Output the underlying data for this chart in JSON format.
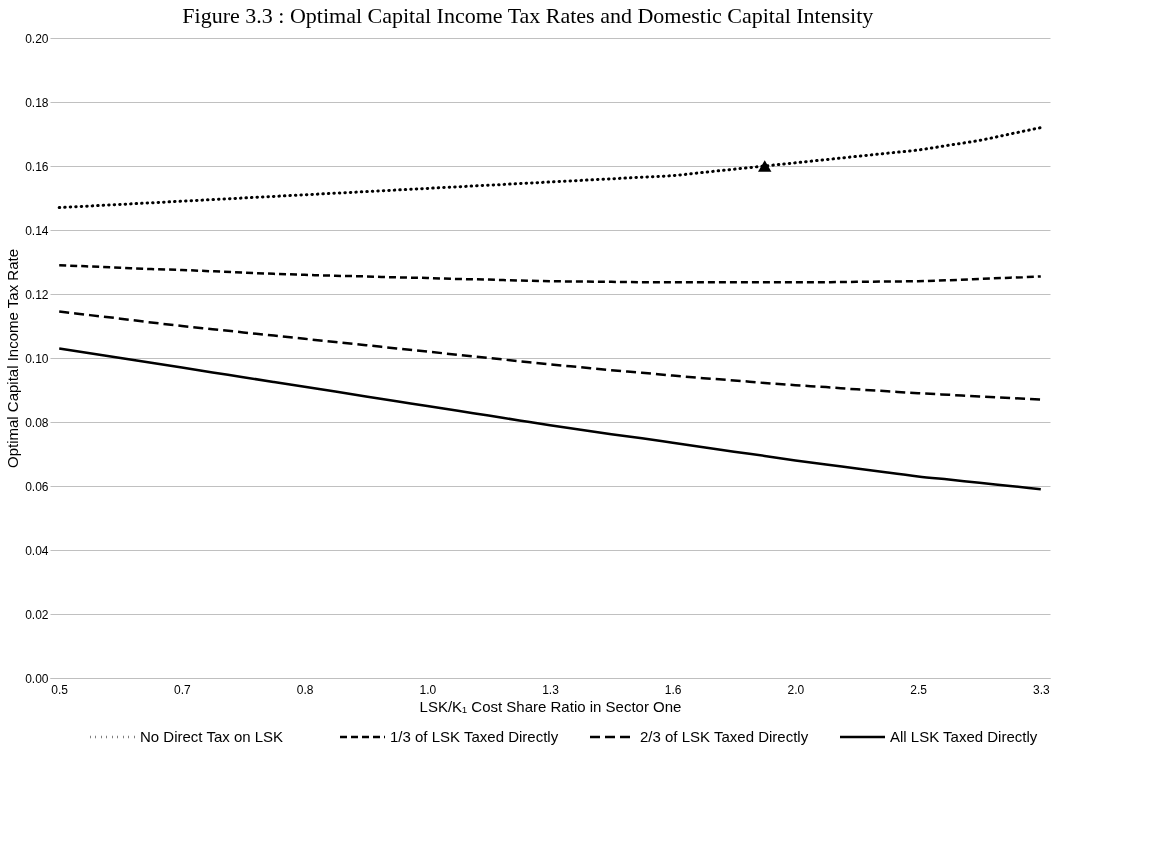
{
  "chart_data": {
    "type": "line",
    "title": "Figure 3.3 : Optimal Capital Income Tax Rates and Domestic Capital Intensity",
    "xlabel": "LSK/K₁ Cost Share Ratio in Sector One",
    "ylabel": "Optimal Capital Income Tax Rate",
    "categories": [
      "0.5",
      null,
      null,
      null,
      "0.7",
      null,
      null,
      null,
      "0.8",
      null,
      null,
      null,
      "1.0",
      null,
      null,
      null,
      "1.3",
      null,
      null,
      null,
      "1.6",
      null,
      null,
      null,
      "2.0",
      null,
      null,
      null,
      "2.5",
      null,
      null,
      null,
      "3.3"
    ],
    "ylim": [
      0,
      0.2
    ],
    "yticks": [
      {
        "value": 0,
        "label": "0.00"
      },
      {
        "value": 0.02,
        "label": "0.02"
      },
      {
        "value": 0.04,
        "label": "0.04"
      },
      {
        "value": 0.06,
        "label": "0.06"
      },
      {
        "value": 0.08,
        "label": "0.08"
      },
      {
        "value": 0.1,
        "label": "0.10"
      },
      {
        "value": 0.12,
        "label": "0.12"
      },
      {
        "value": 0.14,
        "label": "0.14"
      },
      {
        "value": 0.16,
        "label": "0.16"
      },
      {
        "value": 0.18,
        "label": "0.18"
      },
      {
        "value": 0.2,
        "label": "0.20"
      }
    ],
    "grid": "y",
    "legend": "bottom",
    "series": [
      {
        "name": "No Direct Tax on LSK",
        "color": "#000000",
        "line_style": "dotted",
        "values": [
          0.147,
          0.1475,
          0.148,
          0.1485,
          0.149,
          0.1495,
          0.15,
          0.1505,
          0.151,
          0.1515,
          0.152,
          0.1525,
          0.153,
          0.1535,
          0.154,
          0.1545,
          0.155,
          0.1555,
          0.156,
          0.1565,
          0.157,
          0.158,
          0.159,
          0.16,
          0.161,
          0.162,
          0.163,
          0.164,
          0.165,
          0.1665,
          0.168,
          0.17,
          0.172
        ]
      },
      {
        "name": "1/3 of LSK Taxed Directly",
        "color": "#000000",
        "line_style": "dashed",
        "values": [
          0.129,
          0.1286,
          0.1282,
          0.1278,
          0.1275,
          0.1271,
          0.1267,
          0.1263,
          0.126,
          0.1257,
          0.1255,
          0.1252,
          0.125,
          0.1247,
          0.1245,
          0.1242,
          0.124,
          0.1239,
          0.1238,
          0.1237,
          0.1237,
          0.1237,
          0.1237,
          0.1237,
          0.1237,
          0.1237,
          0.1238,
          0.1239,
          0.124,
          0.1243,
          0.1247,
          0.1251,
          0.1255
        ]
      },
      {
        "name": "2/3 of LSK Taxed Directly",
        "color": "#000000",
        "line_style": "dashed",
        "values": [
          0.1145,
          0.1134,
          0.1123,
          0.1111,
          0.11,
          0.109,
          0.108,
          0.107,
          0.106,
          0.105,
          0.104,
          0.103,
          0.102,
          0.101,
          0.1,
          0.099,
          0.098,
          0.0971,
          0.0962,
          0.0954,
          0.0945,
          0.0937,
          0.093,
          0.0922,
          0.0915,
          0.0909,
          0.0902,
          0.0896,
          0.089,
          0.0885,
          0.088,
          0.0875,
          0.087
        ]
      },
      {
        "name": "All LSK Taxed Directly",
        "color": "#000000",
        "line_style": "solid",
        "values": [
          0.103,
          0.1015,
          0.1,
          0.0985,
          0.097,
          0.0955,
          0.094,
          0.0925,
          0.091,
          0.0895,
          0.088,
          0.0865,
          0.085,
          0.0835,
          0.082,
          0.0805,
          0.079,
          0.0776,
          0.0762,
          0.0749,
          0.0735,
          0.0721,
          0.0707,
          0.0694,
          0.068,
          0.0667,
          0.0655,
          0.0642,
          0.063,
          0.062,
          0.061,
          0.06,
          0.059
        ]
      },
      {
        "type": "scatter",
        "marker": "triangle",
        "color": "#000000",
        "values": [
          null,
          null,
          null,
          null,
          null,
          null,
          null,
          null,
          null,
          null,
          null,
          null,
          null,
          null,
          null,
          null,
          null,
          null,
          null,
          null,
          null,
          null,
          null,
          0.16,
          null,
          null,
          null,
          null,
          null,
          null,
          null,
          null,
          null
        ]
      }
    ]
  }
}
